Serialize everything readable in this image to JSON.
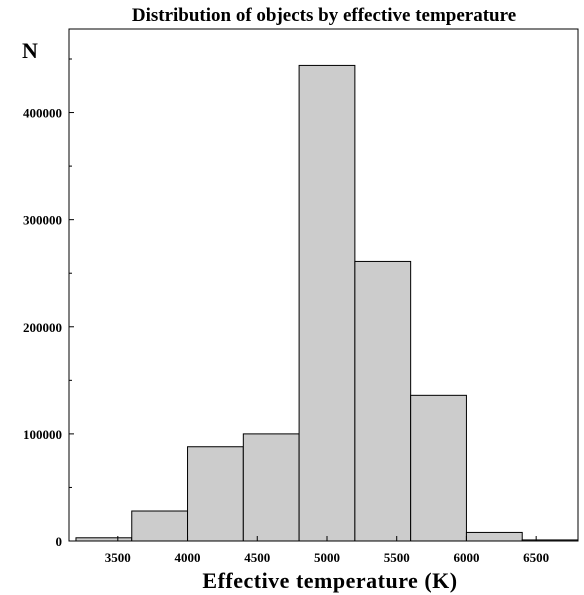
{
  "chart_data": {
    "type": "bar",
    "title": "Distribution of objects by effective temperature",
    "xlabel": "Effective temperature (K)",
    "ylabel": "N",
    "bins": [
      {
        "start": 3200,
        "end": 3600,
        "value": 3000
      },
      {
        "start": 3600,
        "end": 4000,
        "value": 28000
      },
      {
        "start": 4000,
        "end": 4400,
        "value": 88000
      },
      {
        "start": 4400,
        "end": 4800,
        "value": 100000
      },
      {
        "start": 4800,
        "end": 5200,
        "value": 444000
      },
      {
        "start": 5200,
        "end": 5600,
        "value": 261000
      },
      {
        "start": 5600,
        "end": 6000,
        "value": 136000
      },
      {
        "start": 6000,
        "end": 6400,
        "value": 8000
      },
      {
        "start": 6400,
        "end": 6800,
        "value": 1000
      }
    ],
    "xlim": [
      3150,
      6800
    ],
    "ylim": [
      0,
      478000
    ],
    "xticks": [
      3500,
      4000,
      4500,
      5000,
      5500,
      6000,
      6500
    ],
    "xtick_labels": [
      "3500",
      "4000",
      "4500",
      "5000",
      "5500",
      "6000",
      "6500"
    ],
    "yticks": [
      0,
      100000,
      200000,
      300000,
      400000
    ],
    "ytick_labels": [
      "0",
      "100000",
      "200000",
      "300000",
      "400000"
    ],
    "grid": false,
    "bar_color": "#cccccc",
    "edge_color": "#000000"
  }
}
